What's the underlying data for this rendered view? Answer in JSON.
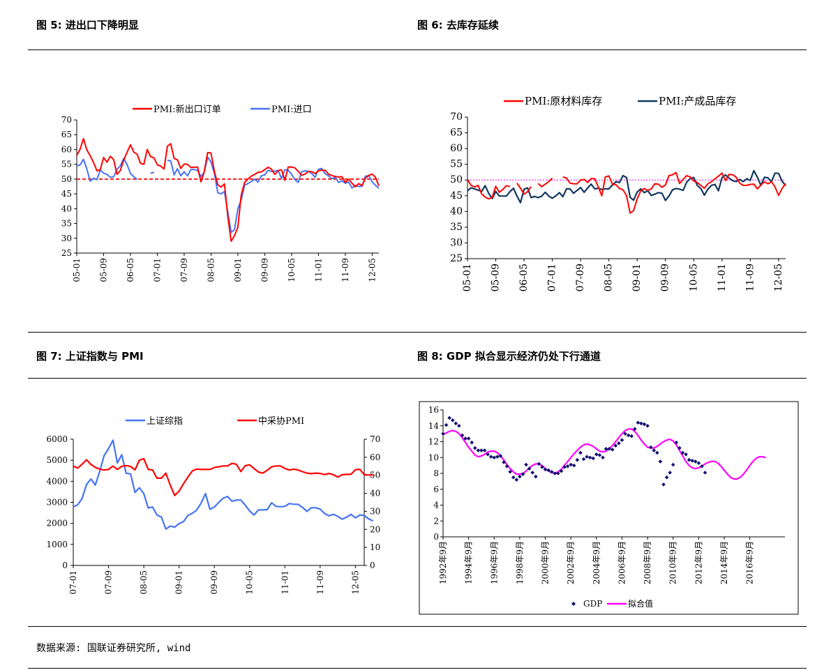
{
  "figures": {
    "fig5_title": "图 5:  进出口下降明显",
    "fig6_title": "图 6:  去库存延续",
    "fig7_title": "图 7:   上证指数与 PMI",
    "fig8_title": "图 8:  GDP 拟合显示经济仍处下行通道"
  },
  "source": "数据来源: 国联证券研究所, wind",
  "colors": {
    "red": "#ff0000",
    "blue": "#4472f4",
    "navy": "#12365e",
    "magenta": "#ff00ff",
    "darkblue": "#10106e"
  },
  "chart_data": [
    {
      "id": "fig5",
      "type": "line",
      "ylim": [
        25,
        70
      ],
      "yticks": [
        25,
        30,
        35,
        40,
        45,
        50,
        55,
        60,
        65,
        70
      ],
      "xlim": [
        0,
        90
      ],
      "xticks": [
        {
          "i": 0,
          "label": "05-01"
        },
        {
          "i": 8,
          "label": "05-09"
        },
        {
          "i": 16,
          "label": "06-05"
        },
        {
          "i": 24,
          "label": "07-01"
        },
        {
          "i": 32,
          "label": "07-09"
        },
        {
          "i": 40,
          "label": "08-05"
        },
        {
          "i": 48,
          "label": "09-01"
        },
        {
          "i": 56,
          "label": "09-09"
        },
        {
          "i": 64,
          "label": "10-05"
        },
        {
          "i": 72,
          "label": "11-01"
        },
        {
          "i": 80,
          "label": "11-09"
        },
        {
          "i": 88,
          "label": "12-05"
        }
      ],
      "reference_line": 50,
      "series": [
        {
          "name": "PMI:新出口订单",
          "color": "#ff0000",
          "values": [
            58.0,
            60.1,
            63.7,
            59.9,
            57.9,
            55.6,
            52.8,
            53.2,
            57.3,
            55.7,
            57.7,
            56.6,
            51.6,
            52.9,
            56.5,
            59.1,
            61.6,
            59.1,
            58.4,
            55.3,
            55.0,
            60.0,
            57.6,
            57.2,
            54.8,
            54.4,
            53.4,
            61.1,
            62.0,
            57.0,
            56.5,
            53.6,
            55.1,
            55.0,
            53.9,
            54.0,
            54.1,
            49.1,
            52.5,
            59.0,
            58.8,
            52.6,
            48.1,
            47.3,
            48.4,
            37.4,
            29.0,
            30.9,
            33.7,
            44.6,
            48.9,
            50.0,
            51.0,
            51.6,
            52.3,
            52.4,
            53.2,
            54.0,
            53.4,
            51.6,
            52.9,
            53.1,
            49.6,
            54.1,
            54.1,
            53.8,
            52.6,
            51.3,
            51.7,
            52.6,
            52.5,
            51.9,
            52.8,
            53.0,
            53.0,
            51.7,
            51.2,
            50.9,
            50.7,
            50.8,
            48.9,
            50.0,
            48.6,
            47.4,
            48.5,
            47.8,
            50.3,
            51.3,
            51.7,
            50.6,
            47.7
          ]
        },
        {
          "name": "PMI:进口",
          "color": "#4472f4",
          "values": [
            54.5,
            54.8,
            56.7,
            53.5,
            49.3,
            50.3,
            49.8,
            53.1,
            52.0,
            51.6,
            50.6,
            50.8,
            53.3,
            54.5,
            57.0,
            54.9,
            51.9,
            50.8,
            49.9,
            null,
            null,
            null,
            52.0,
            52.3,
            null,
            null,
            null,
            56.3,
            56.2,
            51.4,
            53.5,
            51.1,
            52.5,
            51.1,
            53.2,
            53.3,
            52.9,
            50.9,
            52.4,
            57.5,
            55.8,
            51.9,
            45.4,
            45.0,
            45.8,
            38.9,
            32.0,
            32.9,
            40.0,
            42.9,
            48.0,
            48.5,
            49.2,
            50.0,
            49.0,
            51.1,
            51.4,
            53.0,
            52.6,
            52.7,
            52.9,
            50.2,
            53.2,
            53.0,
            51.6,
            49.8,
            48.9,
            52.5,
            52.8,
            52.6,
            51.9,
            50.6,
            53.3,
            53.6,
            51.8,
            51.1,
            50.1,
            50.6,
            48.9,
            49.4,
            48.6,
            49.0,
            47.0,
            47.9,
            47.5,
            47.6,
            51.0,
            51.1,
            49.1,
            47.9,
            46.9
          ]
        }
      ]
    },
    {
      "id": "fig6",
      "type": "line",
      "ylim": [
        25,
        70
      ],
      "yticks": [
        25,
        30,
        35,
        40,
        45,
        50,
        55,
        60,
        65,
        70
      ],
      "xlim": [
        0,
        90
      ],
      "xticks": [
        {
          "i": 0,
          "label": "05-01"
        },
        {
          "i": 8,
          "label": "05-09"
        },
        {
          "i": 16,
          "label": "06-05"
        },
        {
          "i": 24,
          "label": "07-01"
        },
        {
          "i": 32,
          "label": "07-09"
        },
        {
          "i": 40,
          "label": "08-05"
        },
        {
          "i": 48,
          "label": "09-01"
        },
        {
          "i": 56,
          "label": "09-09"
        },
        {
          "i": 64,
          "label": "10-05"
        },
        {
          "i": 72,
          "label": "11-01"
        },
        {
          "i": 80,
          "label": "11-09"
        },
        {
          "i": 88,
          "label": "12-05"
        }
      ],
      "reference_line": 50,
      "series": [
        {
          "name": "PMI:原材料库存",
          "color": "#ff0000",
          "values": [
            50.2,
            48.3,
            47.8,
            48.3,
            45.6,
            44.6,
            44.0,
            44.5,
            48.0,
            46.1,
            47.0,
            48.2,
            47.9,
            null,
            49.0,
            47.4,
            45.5,
            46.3,
            47.9,
            null,
            48.9,
            47.9,
            48.7,
            49.5,
            50.6,
            null,
            null,
            51.0,
            50.6,
            49.0,
            48.8,
            48.8,
            50.0,
            50.2,
            49.2,
            50.5,
            50.4,
            47.8,
            45.0,
            51.0,
            51.3,
            48.7,
            48.5,
            47.3,
            46.9,
            45.0,
            39.5,
            40.3,
            44.0,
            46.6,
            47.3,
            46.7,
            47.2,
            48.8,
            48.7,
            47.7,
            48.4,
            51.4,
            51.7,
            52.4,
            48.9,
            50.2,
            51.4,
            51.0,
            49.7,
            49.2,
            48.3,
            47.4,
            48.8,
            49.4,
            50.4,
            51.2,
            52.2,
            49.8,
            51.8,
            51.7,
            50.9,
            49.0,
            48.3,
            48.3,
            48.6,
            48.7,
            47.2,
            48.4,
            49.4,
            48.8,
            49.5,
            47.8,
            45.1,
            47.3,
            48.9
          ]
        },
        {
          "name": "PMI:产成品库存",
          "color": "#12365e",
          "values": [
            46.6,
            47.5,
            47.2,
            46.8,
            46.4,
            48.2,
            45.8,
            44.1,
            46.4,
            44.9,
            44.9,
            44.9,
            46.3,
            47.4,
            44.9,
            42.8,
            47.1,
            47.5,
            44.4,
            44.8,
            44.4,
            44.9,
            46.1,
            44.9,
            44.2,
            45.0,
            46.0,
            44.7,
            47.2,
            47.2,
            45.8,
            46.7,
            47.6,
            46.1,
            47.5,
            48.7,
            47.2,
            47.4,
            47.0,
            47.2,
            47.2,
            48.4,
            49.5,
            49.2,
            51.4,
            50.8,
            44.5,
            43.6,
            46.2,
            47.2,
            46.0,
            46.6,
            45.1,
            45.5,
            46.0,
            45.8,
            43.5,
            44.9,
            46.9,
            47.3,
            47.1,
            46.7,
            49.3,
            50.5,
            50.8,
            48.3,
            47.3,
            45.2,
            47.1,
            48.3,
            48.6,
            46.6,
            50.8,
            51.6,
            50.6,
            49.8,
            49.5,
            50.2,
            49.5,
            50.4,
            49.9,
            53.0,
            50.9,
            48.3,
            50.9,
            50.7,
            49.5,
            52.2,
            52.1,
            49.6,
            48.2
          ]
        }
      ]
    },
    {
      "id": "fig7",
      "type": "line",
      "ylim_left": [
        0,
        6000
      ],
      "yticks_left": [
        0,
        1000,
        2000,
        3000,
        4000,
        5000,
        6000
      ],
      "ylim_right": [
        0,
        70
      ],
      "yticks_right": [
        0,
        10,
        20,
        30,
        40,
        50,
        60,
        70
      ],
      "xlim": [
        0,
        66
      ],
      "xticks": [
        {
          "i": 0,
          "label": "07-01"
        },
        {
          "i": 8,
          "label": "07-09"
        },
        {
          "i": 16,
          "label": "08-05"
        },
        {
          "i": 24,
          "label": "09-01"
        },
        {
          "i": 32,
          "label": "09-09"
        },
        {
          "i": 40,
          "label": "10-05"
        },
        {
          "i": 48,
          "label": "11-01"
        },
        {
          "i": 56,
          "label": "11-09"
        },
        {
          "i": 64,
          "label": "12-05"
        }
      ],
      "series": [
        {
          "name": "上证综指",
          "color": "#4472f4",
          "axis": "left",
          "values": [
            2786,
            2881,
            3183,
            3841,
            4109,
            3821,
            4471,
            5218,
            5552,
            5954,
            4871,
            5261,
            4383,
            4348,
            3472,
            3693,
            3413,
            2736,
            2775,
            2397,
            2294,
            1729,
            1871,
            1821,
            1990,
            2082,
            2373,
            2477,
            2632,
            2959,
            3412,
            2667,
            2779,
            2996,
            3195,
            3277,
            3051,
            3109,
            3110,
            2871,
            2592,
            2398,
            2638,
            2638,
            2656,
            2978,
            2808,
            2791,
            2808,
            2941,
            2912,
            2905,
            2762,
            2568,
            2742,
            2743,
            2677,
            2468,
            2358,
            2434,
            2333,
            2199,
            2293,
            2428,
            2262,
            2397,
            2373,
            2211,
            2118
          ]
        },
        {
          "name": "中采协PMI",
          "color": "#ff0000",
          "axis": "right",
          "values": [
            55.1,
            54.0,
            56.1,
            58.6,
            56.0,
            54.4,
            53.4,
            52.9,
            53.2,
            55.1,
            53.2,
            55.0,
            55.4,
            54.9,
            53.0,
            58.4,
            59.2,
            53.3,
            52.9,
            48.4,
            48.4,
            51.2,
            44.6,
            38.8,
            41.2,
            45.3,
            49.0,
            52.4,
            53.5,
            53.2,
            53.3,
            53.2,
            54.3,
            54.7,
            55.2,
            55.2,
            56.6,
            56.1,
            52.1,
            55.3,
            55.8,
            53.8,
            51.8,
            51.2,
            52.8,
            54.7,
            55.2,
            55.2,
            53.8,
            52.9,
            53.4,
            52.9,
            52.0,
            51.2,
            50.9,
            51.2,
            51.0,
            50.4,
            51.0,
            50.3,
            49.0,
            50.3,
            50.5,
            50.5,
            53.1,
            53.3,
            50.4,
            50.2,
            50.1
          ]
        }
      ]
    },
    {
      "id": "fig8",
      "type": "line",
      "ylim": [
        0,
        16
      ],
      "yticks": [
        0,
        2,
        4,
        6,
        8,
        10,
        12,
        14,
        16
      ],
      "x_start": 1992.75,
      "x_end": 2019.5,
      "xticks": [
        "1992年9月",
        "1994年9月",
        "1996年9月",
        "1998年9月",
        "2000年9月",
        "2002年9月",
        "2004年9月",
        "2006年9月",
        "2008年9月",
        "2010年9月",
        "2012年9月",
        "2014年9月",
        "2016年9月"
      ],
      "series": [
        {
          "name": "GDP",
          "color": "#10106e",
          "kind": "scatter",
          "step": 0.25,
          "start": 1992.75,
          "values": [
            13.0,
            14.1,
            15.0,
            14.7,
            14.3,
            14.0,
            12.8,
            12.4,
            12.4,
            11.9,
            11.2,
            10.9,
            10.9,
            10.9,
            10.4,
            10.1,
            10.0,
            10.1,
            10.2,
            9.4,
            8.9,
            8.2,
            7.5,
            7.2,
            7.6,
            7.9,
            9.1,
            8.6,
            8.1,
            7.6,
            9.2,
            8.8,
            8.5,
            8.4,
            8.2,
            8.0,
            8.0,
            8.3,
            8.8,
            8.9,
            9.1,
            9.0,
            9.7,
            10.6,
            9.8,
            10.1,
            10.0,
            9.9,
            10.4,
            10.3,
            10.0,
            11.1,
            11.1,
            11.0,
            11.5,
            11.8,
            12.2,
            13.0,
            12.8,
            12.7,
            13.6,
            14.4,
            14.3,
            14.2,
            14.0,
            11.3,
            10.9,
            10.6,
            9.5,
            6.6,
            7.5,
            8.1,
            9.1,
            11.9,
            11.2,
            10.6,
            10.4,
            9.7,
            9.6,
            9.5,
            9.3,
            8.9,
            8.1
          ]
        },
        {
          "name": "拟合值",
          "color": "#ff00ff",
          "kind": "line",
          "step": 0.25,
          "start": 1992.75,
          "values": [
            12.9,
            13.1,
            13.3,
            13.4,
            13.3,
            13.0,
            12.5,
            11.9,
            11.3,
            10.8,
            10.3,
            10.1,
            10.2,
            10.4,
            10.7,
            10.8,
            10.8,
            10.6,
            10.2,
            9.7,
            9.1,
            8.6,
            8.2,
            7.9,
            7.9,
            8.0,
            8.3,
            8.7,
            9.0,
            9.2,
            9.2,
            9.0,
            8.6,
            8.3,
            8.1,
            8.0,
            8.2,
            8.5,
            9.0,
            9.5,
            10.0,
            10.5,
            10.9,
            11.3,
            11.6,
            11.7,
            11.6,
            11.4,
            11.1,
            10.8,
            10.7,
            10.8,
            11.1,
            11.5,
            12.0,
            12.5,
            13.0,
            13.4,
            13.6,
            13.6,
            13.3,
            12.8,
            12.2,
            11.7,
            11.3,
            11.2,
            11.2,
            11.4,
            11.7,
            12.0,
            12.2,
            12.3,
            12.1,
            11.6,
            10.9,
            10.2,
            9.5,
            9.0,
            8.7,
            8.6,
            8.7,
            8.9,
            9.2,
            9.4,
            9.5,
            9.5,
            9.3,
            8.9,
            8.4,
            7.9,
            7.5,
            7.3,
            7.3,
            7.5,
            7.9,
            8.4,
            9.0,
            9.5,
            9.9,
            10.1,
            10.1,
            10.0
          ]
        }
      ]
    }
  ]
}
